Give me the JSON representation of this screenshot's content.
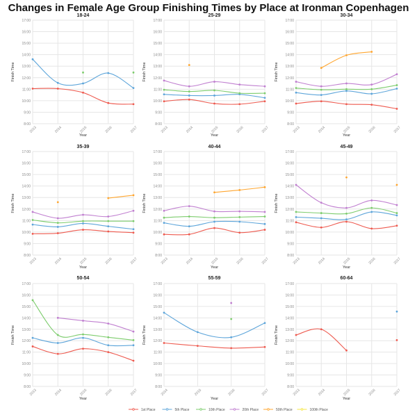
{
  "title": "Changes in Female Age Group Finishing Times by Place at Ironman Copenhagen",
  "chart_data": [
    {
      "type": "line",
      "title": "18-24",
      "x": [
        "2013",
        "2014",
        "2015",
        "2016",
        "2017"
      ],
      "xlabel": "Year",
      "ylabel": "Finish Time",
      "ylim": [
        8,
        17
      ],
      "yticks": [
        "8:00",
        "9:00",
        "10:00",
        "11:00",
        "12:00",
        "13:00",
        "14:00",
        "15:00",
        "16:00",
        "17:00"
      ],
      "grid": true,
      "series": [
        {
          "name": "1st Place",
          "values": [
            11.05,
            11.05,
            10.7,
            9.8,
            9.7
          ]
        },
        {
          "name": "5th Place",
          "values": [
            13.6,
            11.55,
            11.5,
            12.4,
            11.1
          ]
        },
        {
          "name": "10th Place",
          "values": [
            null,
            null,
            12.45,
            null,
            12.45
          ]
        }
      ]
    },
    {
      "type": "line",
      "title": "25-29",
      "x": [
        "2013",
        "2014",
        "2015",
        "2016",
        "2017"
      ],
      "xlabel": "Year",
      "ylabel": "Finish Time",
      "ylim": [
        8,
        17
      ],
      "yticks": [
        "8:00",
        "9:00",
        "10:00",
        "11:00",
        "12:00",
        "13:00",
        "14:00",
        "15:00",
        "16:00",
        "17:00"
      ],
      "grid": true,
      "series": [
        {
          "name": "1st Place",
          "values": [
            9.95,
            10.1,
            9.75,
            9.7,
            9.95
          ]
        },
        {
          "name": "5th Place",
          "values": [
            10.55,
            10.45,
            10.45,
            10.55,
            10.25
          ]
        },
        {
          "name": "10th Place",
          "values": [
            10.95,
            10.8,
            10.9,
            10.65,
            10.65
          ]
        },
        {
          "name": "20th Place",
          "values": [
            11.75,
            11.25,
            11.65,
            11.4,
            11.25
          ]
        },
        {
          "name": "50th Place",
          "values": [
            null,
            13.1,
            null,
            null,
            null
          ]
        }
      ]
    },
    {
      "type": "line",
      "title": "30-34",
      "x": [
        "2013",
        "2014",
        "2015",
        "2016",
        "2017"
      ],
      "xlabel": "Year",
      "ylabel": "Finish Time",
      "ylim": [
        8,
        17
      ],
      "yticks": [
        "8:00",
        "9:00",
        "10:00",
        "11:00",
        "12:00",
        "13:00",
        "14:00",
        "15:00",
        "16:00",
        "17:00"
      ],
      "grid": true,
      "series": [
        {
          "name": "1st Place",
          "values": [
            9.75,
            9.95,
            9.7,
            9.65,
            9.3
          ]
        },
        {
          "name": "5th Place",
          "values": [
            10.7,
            10.5,
            10.85,
            10.6,
            11.05
          ]
        },
        {
          "name": "10th Place",
          "values": [
            11.1,
            10.95,
            11.0,
            11.0,
            11.35
          ]
        },
        {
          "name": "20th Place",
          "values": [
            11.65,
            11.25,
            11.5,
            11.4,
            12.3
          ]
        },
        {
          "name": "50th Place",
          "values": [
            null,
            12.85,
            13.95,
            14.25,
            null
          ]
        }
      ]
    },
    {
      "type": "line",
      "title": "35-39",
      "x": [
        "2013",
        "2014",
        "2015",
        "2016",
        "2017"
      ],
      "xlabel": "Year",
      "ylabel": "Finish Time",
      "ylim": [
        8,
        17
      ],
      "yticks": [
        "8:00",
        "9:00",
        "10:00",
        "11:00",
        "12:00",
        "13:00",
        "14:00",
        "15:00",
        "16:00",
        "17:00"
      ],
      "grid": true,
      "series": [
        {
          "name": "1st Place",
          "values": [
            9.85,
            9.9,
            10.2,
            10.05,
            9.95
          ]
        },
        {
          "name": "5th Place",
          "values": [
            10.65,
            10.45,
            10.75,
            10.5,
            10.25
          ]
        },
        {
          "name": "10th Place",
          "values": [
            11.05,
            10.8,
            10.95,
            10.95,
            10.95
          ]
        },
        {
          "name": "20th Place",
          "values": [
            11.75,
            11.2,
            11.5,
            11.35,
            11.85
          ]
        },
        {
          "name": "50th Place",
          "values": [
            null,
            12.6,
            null,
            12.95,
            13.2
          ]
        }
      ]
    },
    {
      "type": "line",
      "title": "40-44",
      "x": [
        "2013",
        "2014",
        "2015",
        "2016",
        "2017"
      ],
      "xlabel": "Year",
      "ylabel": "Finish Time",
      "ylim": [
        8,
        17
      ],
      "yticks": [
        "8:00",
        "9:00",
        "10:00",
        "11:00",
        "12:00",
        "13:00",
        "14:00",
        "15:00",
        "16:00",
        "17:00"
      ],
      "grid": true,
      "series": [
        {
          "name": "1st Place",
          "values": [
            9.8,
            9.8,
            10.35,
            9.95,
            10.2
          ]
        },
        {
          "name": "5th Place",
          "values": [
            10.8,
            10.5,
            10.9,
            10.9,
            10.7
          ]
        },
        {
          "name": "10th Place",
          "values": [
            11.25,
            11.35,
            11.25,
            11.3,
            11.35
          ]
        },
        {
          "name": "20th Place",
          "values": [
            11.85,
            12.25,
            11.8,
            11.8,
            11.75
          ]
        },
        {
          "name": "50th Place",
          "values": [
            null,
            null,
            13.45,
            13.65,
            13.9
          ]
        }
      ]
    },
    {
      "type": "line",
      "title": "45-49",
      "x": [
        "2013",
        "2014",
        "2015",
        "2016",
        "2017"
      ],
      "xlabel": "Year",
      "ylabel": "Finish Time",
      "ylim": [
        8,
        17
      ],
      "yticks": [
        "8:00",
        "9:00",
        "10:00",
        "11:00",
        "12:00",
        "13:00",
        "14:00",
        "15:00",
        "16:00",
        "17:00"
      ],
      "grid": true,
      "series": [
        {
          "name": "1st Place",
          "values": [
            10.85,
            10.4,
            10.9,
            10.3,
            10.55
          ]
        },
        {
          "name": "5th Place",
          "values": [
            11.3,
            11.2,
            11.1,
            11.75,
            11.45
          ]
        },
        {
          "name": "10th Place",
          "values": [
            11.75,
            11.65,
            11.6,
            12.1,
            11.65
          ]
        },
        {
          "name": "20th Place",
          "values": [
            14.1,
            12.55,
            12.1,
            12.75,
            12.35
          ]
        },
        {
          "name": "50th Place",
          "values": [
            null,
            null,
            14.75,
            null,
            14.1
          ]
        }
      ]
    },
    {
      "type": "line",
      "title": "50-54",
      "x": [
        "2013",
        "2014",
        "2015",
        "2016",
        "2017"
      ],
      "xlabel": "Year",
      "ylabel": "Finish Time",
      "ylim": [
        8,
        17
      ],
      "yticks": [
        "8:00",
        "9:00",
        "10:00",
        "11:00",
        "12:00",
        "13:00",
        "14:00",
        "15:00",
        "16:00",
        "17:00"
      ],
      "grid": true,
      "series": [
        {
          "name": "1st Place",
          "values": [
            11.5,
            10.85,
            11.3,
            11.0,
            10.25
          ]
        },
        {
          "name": "5th Place",
          "values": [
            12.25,
            11.8,
            12.25,
            11.6,
            11.6
          ]
        },
        {
          "name": "10th Place",
          "values": [
            15.55,
            12.5,
            12.55,
            12.3,
            12.05
          ]
        },
        {
          "name": "20th Place",
          "values": [
            null,
            14.0,
            13.75,
            13.5,
            12.8
          ]
        }
      ]
    },
    {
      "type": "line",
      "title": "55-59",
      "x": [
        "2014",
        "2015",
        "2016",
        "2017"
      ],
      "xlabel": "Year",
      "ylabel": "Finish Time",
      "ylim": [
        8,
        17
      ],
      "yticks": [
        "8:00",
        "9:00",
        "10:00",
        "11:00",
        "12:00",
        "13:00",
        "14:00",
        "15:00",
        "16:00",
        "17:00"
      ],
      "grid": true,
      "series": [
        {
          "name": "1st Place",
          "values": [
            11.8,
            11.55,
            11.35,
            11.45
          ]
        },
        {
          "name": "5th Place",
          "values": [
            14.45,
            12.75,
            12.3,
            13.55
          ]
        },
        {
          "name": "10th Place",
          "values": [
            null,
            null,
            13.9,
            null
          ]
        },
        {
          "name": "20th Place",
          "values": [
            null,
            null,
            15.3,
            null
          ]
        }
      ]
    },
    {
      "type": "line",
      "title": "60-64",
      "x": [
        "2013",
        "2014",
        "2015",
        "2016",
        "2017"
      ],
      "xlabel": "Year",
      "ylabel": "Finish Time",
      "ylim": [
        8,
        17
      ],
      "yticks": [
        "8:00",
        "9:00",
        "10:00",
        "11:00",
        "12:00",
        "13:00",
        "14:00",
        "15:00",
        "16:00",
        "17:00"
      ],
      "grid": true,
      "series": [
        {
          "name": "1st Place",
          "values": [
            12.5,
            13.0,
            11.15,
            null,
            12.05
          ]
        },
        {
          "name": "5th Place",
          "values": [
            null,
            null,
            null,
            null,
            14.55
          ]
        }
      ]
    }
  ],
  "legend": {
    "placement": "bottom",
    "items": [
      "1st Place",
      "5th Place",
      "10th Place",
      "20th Place",
      "50th Place",
      "100th Place"
    ]
  },
  "colors": {
    "1st Place": "#ee5a4f",
    "5th Place": "#5da5da",
    "10th Place": "#7ccc6c",
    "20th Place": "#c07fd0",
    "50th Place": "#ffa62f",
    "100th Place": "#f5e642"
  }
}
